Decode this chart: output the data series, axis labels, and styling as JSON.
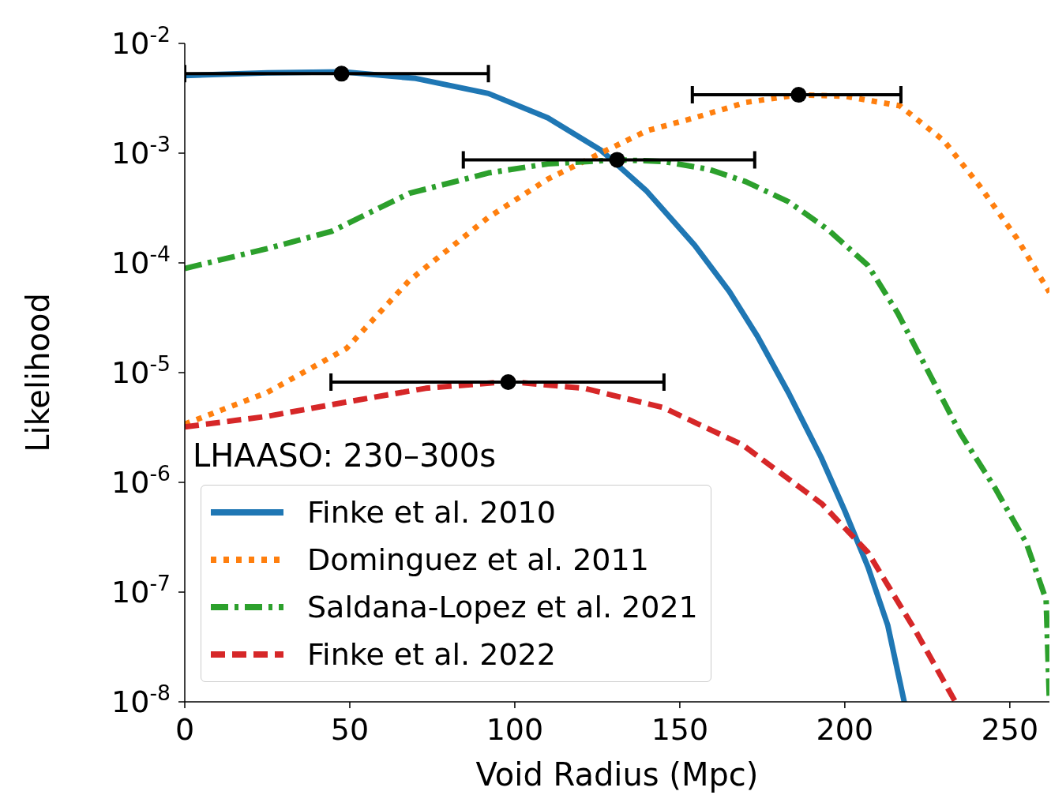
{
  "chart_data": {
    "type": "line",
    "xlabel": "Void Radius (Mpc)",
    "ylabel": "Likelihood",
    "annotations": [
      "LHAASO: 230–300s"
    ],
    "log": "y",
    "xlim": [
      0,
      262
    ],
    "xticks": [
      0,
      50,
      100,
      150,
      200,
      250
    ],
    "ylim": [
      1e-08,
      0.01
    ],
    "yticks": [
      {
        "value": 1e-08,
        "label": "10$^{-8}$"
      },
      {
        "value": 1e-07,
        "label": "10$^{-7}$"
      },
      {
        "value": 1e-06,
        "label": "10$^{-6}$"
      },
      {
        "value": 1e-05,
        "label": "10$^{-5}$"
      },
      {
        "value": 0.0001,
        "label": "10$^{-4}$"
      },
      {
        "value": 0.001,
        "label": "10$^{-3}$"
      },
      {
        "value": 0.01,
        "label": "10$^{-2}$"
      }
    ],
    "grid": false,
    "legend": "bottom left",
    "series": [
      {
        "name": "Finke et al. 2010",
        "color": "#1f77b4",
        "line_style": "solid",
        "x": [
          0,
          25,
          48,
          70,
          92,
          110,
          126,
          140,
          154.5,
          165,
          173.7,
          183,
          192.8,
          200,
          207,
          213,
          218
        ],
        "values": [
          0.0051,
          0.0054,
          0.0055,
          0.0048,
          0.0035,
          0.0021,
          0.00107,
          0.00045,
          0.000145,
          5.5e-05,
          2.1e-05,
          6.5e-06,
          1.7e-06,
          5.5e-07,
          1.7e-07,
          5e-08,
          1e-08
        ]
      },
      {
        "name": "Dominguez et al. 2011",
        "color": "#ff7f0e",
        "line_style": "dotted",
        "x": [
          0,
          25,
          49,
          68,
          92,
          110,
          126,
          140,
          154.5,
          170,
          186,
          200,
          216.7,
          230,
          240.7,
          252,
          262
        ],
        "values": [
          3.4e-06,
          6.6e-06,
          1.66e-05,
          6.9e-05,
          0.00026,
          0.00058,
          0.001,
          0.0016,
          0.0021,
          0.0029,
          0.0034,
          0.0033,
          0.0027,
          0.0013,
          0.00051,
          0.00017,
          5.4e-05
        ]
      },
      {
        "name": "Saldana-Lopez et al. 2021",
        "color": "#2ca02c",
        "line_style": "dashdot",
        "x": [
          0,
          25,
          44.5,
          68,
          92,
          110,
          131,
          145,
          159,
          170,
          183,
          195,
          207,
          216,
          226,
          235,
          245.5,
          255,
          261,
          262
        ],
        "values": [
          8.9e-05,
          0.000135,
          0.000194,
          0.00043,
          0.00066,
          0.0008,
          0.00087,
          0.00084,
          0.00071,
          0.00055,
          0.00036,
          0.0002,
          9.5e-05,
          3.5e-05,
          9.3e-06,
          2.8e-06,
          8.9e-07,
          2.8e-07,
          8.5e-08,
          1e-08
        ]
      },
      {
        "name": "Finke et al. 2022",
        "color": "#d62728",
        "line_style": "dashed",
        "x": [
          0,
          25,
          49,
          73,
          98,
          121,
          145,
          169,
          193,
          207,
          221.5,
          233.5
        ],
        "values": [
          3.2e-06,
          4e-06,
          5.4e-06,
          7.2e-06,
          8.3e-06,
          7.2e-06,
          4.8e-06,
          2.2e-06,
          6.4e-07,
          2.3e-07,
          4.4e-08,
          1e-08
        ]
      },
      {
        "type": "scatter",
        "color": "#000000",
        "marker": "circle",
        "x": [
          47.5,
          186,
          131,
          98
        ],
        "values": [
          0.0053,
          0.0034,
          0.00087,
          8.2e-06
        ],
        "xerrors": [
          [
            0,
            92
          ],
          [
            153.8,
            217
          ],
          [
            84.4,
            172.7
          ],
          [
            44.3,
            145.2
          ]
        ]
      }
    ]
  }
}
